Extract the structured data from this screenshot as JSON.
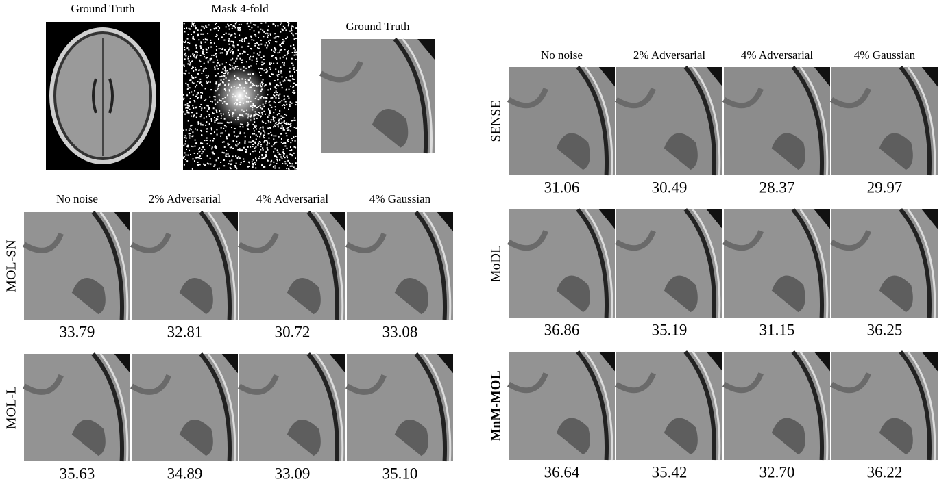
{
  "top": {
    "labels": [
      "Ground Truth",
      "Mask 4-fold",
      "Ground Truth"
    ]
  },
  "left_panel": {
    "columns": [
      "No noise",
      "2% Adversarial",
      "4% Adversarial",
      "4% Gaussian"
    ],
    "rows": [
      {
        "method": "MOL-SN",
        "psnr": [
          "33.79",
          "32.81",
          "30.72",
          "33.08"
        ]
      },
      {
        "method": "MOL-L",
        "psnr": [
          "35.63",
          "34.89",
          "33.09",
          "35.10"
        ]
      }
    ]
  },
  "right_panel": {
    "columns": [
      "No noise",
      "2% Adversarial",
      "4% Adversarial",
      "4% Gaussian"
    ],
    "rows": [
      {
        "method": "SENSE",
        "psnr": [
          "31.06",
          "30.49",
          "28.37",
          "29.97"
        ]
      },
      {
        "method": "MoDL",
        "psnr": [
          "36.86",
          "35.19",
          "31.15",
          "36.25"
        ]
      },
      {
        "method": "MnM-MOL",
        "psnr": [
          "36.64",
          "35.42",
          "32.70",
          "36.22"
        ]
      }
    ]
  }
}
